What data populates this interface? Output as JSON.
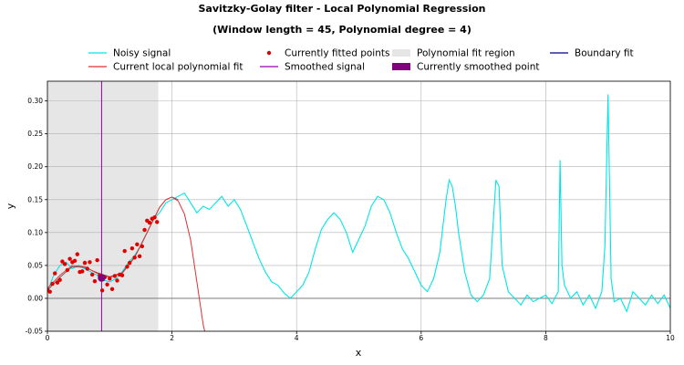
{
  "chart_data": {
    "type": "line",
    "title": "Savitzky-Golay filter - Local Polynomial Regression",
    "subtitle": "(Window length = 45, Polynomial degree = 4)",
    "xlabel": "x",
    "ylabel": "y",
    "xlim": [
      0,
      10
    ],
    "ylim": [
      -0.05,
      0.33
    ],
    "grid": true,
    "legend_placement": "top, outside plot",
    "x_ticks": [
      "0",
      "2",
      "4",
      "6",
      "8",
      "10"
    ],
    "y_ticks": [
      "-0.05",
      "0.00",
      "0.05",
      "0.10",
      "0.15",
      "0.20",
      "0.25",
      "0.30"
    ],
    "legend": [
      {
        "label": "Noisy signal",
        "kind": "line",
        "color": "#00e6e6"
      },
      {
        "label": "Current local polynomial fit",
        "kind": "line",
        "color": "#e03030"
      },
      {
        "label": "Currently fitted points",
        "kind": "dot",
        "color": "#e00000"
      },
      {
        "label": "Smoothed signal",
        "kind": "line",
        "color": "#9400b0"
      },
      {
        "label": "Polynomial fit region",
        "kind": "patch",
        "color": "#e6e6e6"
      },
      {
        "label": "Currently smoothed point",
        "kind": "patch",
        "color": "#800080"
      },
      {
        "label": "Boundary fit",
        "kind": "line",
        "color": "#000080"
      }
    ],
    "fit_region": [
      0,
      1.78
    ],
    "current_x": 0.87,
    "current_point": {
      "x": 0.87,
      "y": 0.031
    },
    "series": [
      {
        "name": "Noisy signal",
        "color": "#00e6e6",
        "x": [
          0,
          0.1,
          0.2,
          0.3,
          0.4,
          0.5,
          0.6,
          0.7,
          0.8,
          0.9,
          1.0,
          1.1,
          1.2,
          1.3,
          1.4,
          1.5,
          1.6,
          1.7,
          1.8,
          1.9,
          2.0,
          2.1,
          2.2,
          2.3,
          2.4,
          2.5,
          2.6,
          2.7,
          2.8,
          2.9,
          3.0,
          3.1,
          3.2,
          3.3,
          3.4,
          3.5,
          3.6,
          3.7,
          3.8,
          3.9,
          4.0,
          4.1,
          4.2,
          4.3,
          4.4,
          4.5,
          4.6,
          4.7,
          4.8,
          4.9,
          5.0,
          5.1,
          5.2,
          5.3,
          5.4,
          5.5,
          5.6,
          5.7,
          5.8,
          5.9,
          6.0,
          6.1,
          6.2,
          6.3,
          6.4,
          6.45,
          6.5,
          6.55,
          6.6,
          6.7,
          6.8,
          6.9,
          7.0,
          7.1,
          7.2,
          7.25,
          7.3,
          7.4,
          7.5,
          7.6,
          7.7,
          7.8,
          7.9,
          8.0,
          8.1,
          8.2,
          8.23,
          8.26,
          8.3,
          8.4,
          8.5,
          8.6,
          8.7,
          8.8,
          8.9,
          8.95,
          9.0,
          9.05,
          9.1,
          9.2,
          9.3,
          9.4,
          9.5,
          9.6,
          9.7,
          9.8,
          9.9,
          10.0
        ],
        "values": [
          0.01,
          0.035,
          0.05,
          0.055,
          0.045,
          0.05,
          0.045,
          0.04,
          0.035,
          0.028,
          0.025,
          0.03,
          0.04,
          0.055,
          0.065,
          0.08,
          0.1,
          0.12,
          0.13,
          0.145,
          0.15,
          0.155,
          0.16,
          0.145,
          0.13,
          0.14,
          0.135,
          0.145,
          0.155,
          0.14,
          0.15,
          0.135,
          0.11,
          0.085,
          0.06,
          0.04,
          0.025,
          0.02,
          0.008,
          0.0,
          0.01,
          0.02,
          0.04,
          0.075,
          0.105,
          0.12,
          0.13,
          0.12,
          0.1,
          0.07,
          0.09,
          0.11,
          0.14,
          0.155,
          0.15,
          0.13,
          0.1,
          0.075,
          0.06,
          0.04,
          0.02,
          0.01,
          0.03,
          0.07,
          0.15,
          0.18,
          0.17,
          0.14,
          0.1,
          0.04,
          0.005,
          -0.005,
          0.005,
          0.03,
          0.18,
          0.17,
          0.05,
          0.01,
          0.0,
          -0.01,
          0.005,
          -0.005,
          0.0,
          0.005,
          -0.008,
          0.01,
          0.21,
          0.05,
          0.02,
          0.0,
          0.01,
          -0.01,
          0.005,
          -0.015,
          0.01,
          0.08,
          0.31,
          0.03,
          -0.005,
          0.0,
          -0.02,
          0.01,
          0.0,
          -0.01,
          0.005,
          -0.008,
          0.005,
          -0.015
        ]
      },
      {
        "name": "Current local polynomial fit",
        "color": "#e03030",
        "x": [
          0.0,
          0.2,
          0.4,
          0.6,
          0.8,
          1.0,
          1.2,
          1.4,
          1.6,
          1.8,
          1.9,
          2.0,
          2.1,
          2.2,
          2.3,
          2.4,
          2.5,
          2.55
        ],
        "values": [
          0.015,
          0.035,
          0.05,
          0.048,
          0.038,
          0.032,
          0.038,
          0.062,
          0.1,
          0.138,
          0.15,
          0.154,
          0.148,
          0.128,
          0.088,
          0.025,
          -0.04,
          -0.06
        ]
      },
      {
        "name": "Boundary fit",
        "color": "#555555",
        "x": [
          0.0,
          0.2,
          0.4,
          0.6,
          0.8,
          1.0,
          1.2,
          1.4,
          1.6,
          1.8,
          1.9,
          2.0,
          2.1
        ],
        "values": [
          0.012,
          0.032,
          0.048,
          0.047,
          0.039,
          0.033,
          0.039,
          0.063,
          0.1,
          0.138,
          0.15,
          0.154,
          0.15
        ]
      }
    ],
    "fitted_points": {
      "name": "Currently fitted points",
      "color": "#e00000",
      "x": [
        0.0,
        0.04,
        0.08,
        0.12,
        0.16,
        0.2,
        0.24,
        0.28,
        0.32,
        0.36,
        0.4,
        0.44,
        0.48,
        0.52,
        0.56,
        0.6,
        0.64,
        0.68,
        0.72,
        0.76,
        0.8,
        0.84,
        0.88,
        0.92,
        0.96,
        1.0,
        1.04,
        1.08,
        1.12,
        1.16,
        1.2,
        1.24,
        1.28,
        1.32,
        1.36,
        1.4,
        1.44,
        1.48,
        1.52,
        1.56,
        1.6,
        1.64,
        1.68,
        1.72,
        1.76
      ],
      "values": [
        0.013,
        0.01,
        0.022,
        0.038,
        0.024,
        0.028,
        0.056,
        0.052,
        0.043,
        0.06,
        0.055,
        0.057,
        0.067,
        0.04,
        0.041,
        0.054,
        0.045,
        0.055,
        0.036,
        0.026,
        0.058,
        0.035,
        0.012,
        0.032,
        0.021,
        0.03,
        0.014,
        0.034,
        0.027,
        0.036,
        0.035,
        0.072,
        0.048,
        0.054,
        0.076,
        0.062,
        0.082,
        0.064,
        0.079,
        0.104,
        0.118,
        0.115,
        0.121,
        0.123,
        0.116
      ]
    }
  }
}
